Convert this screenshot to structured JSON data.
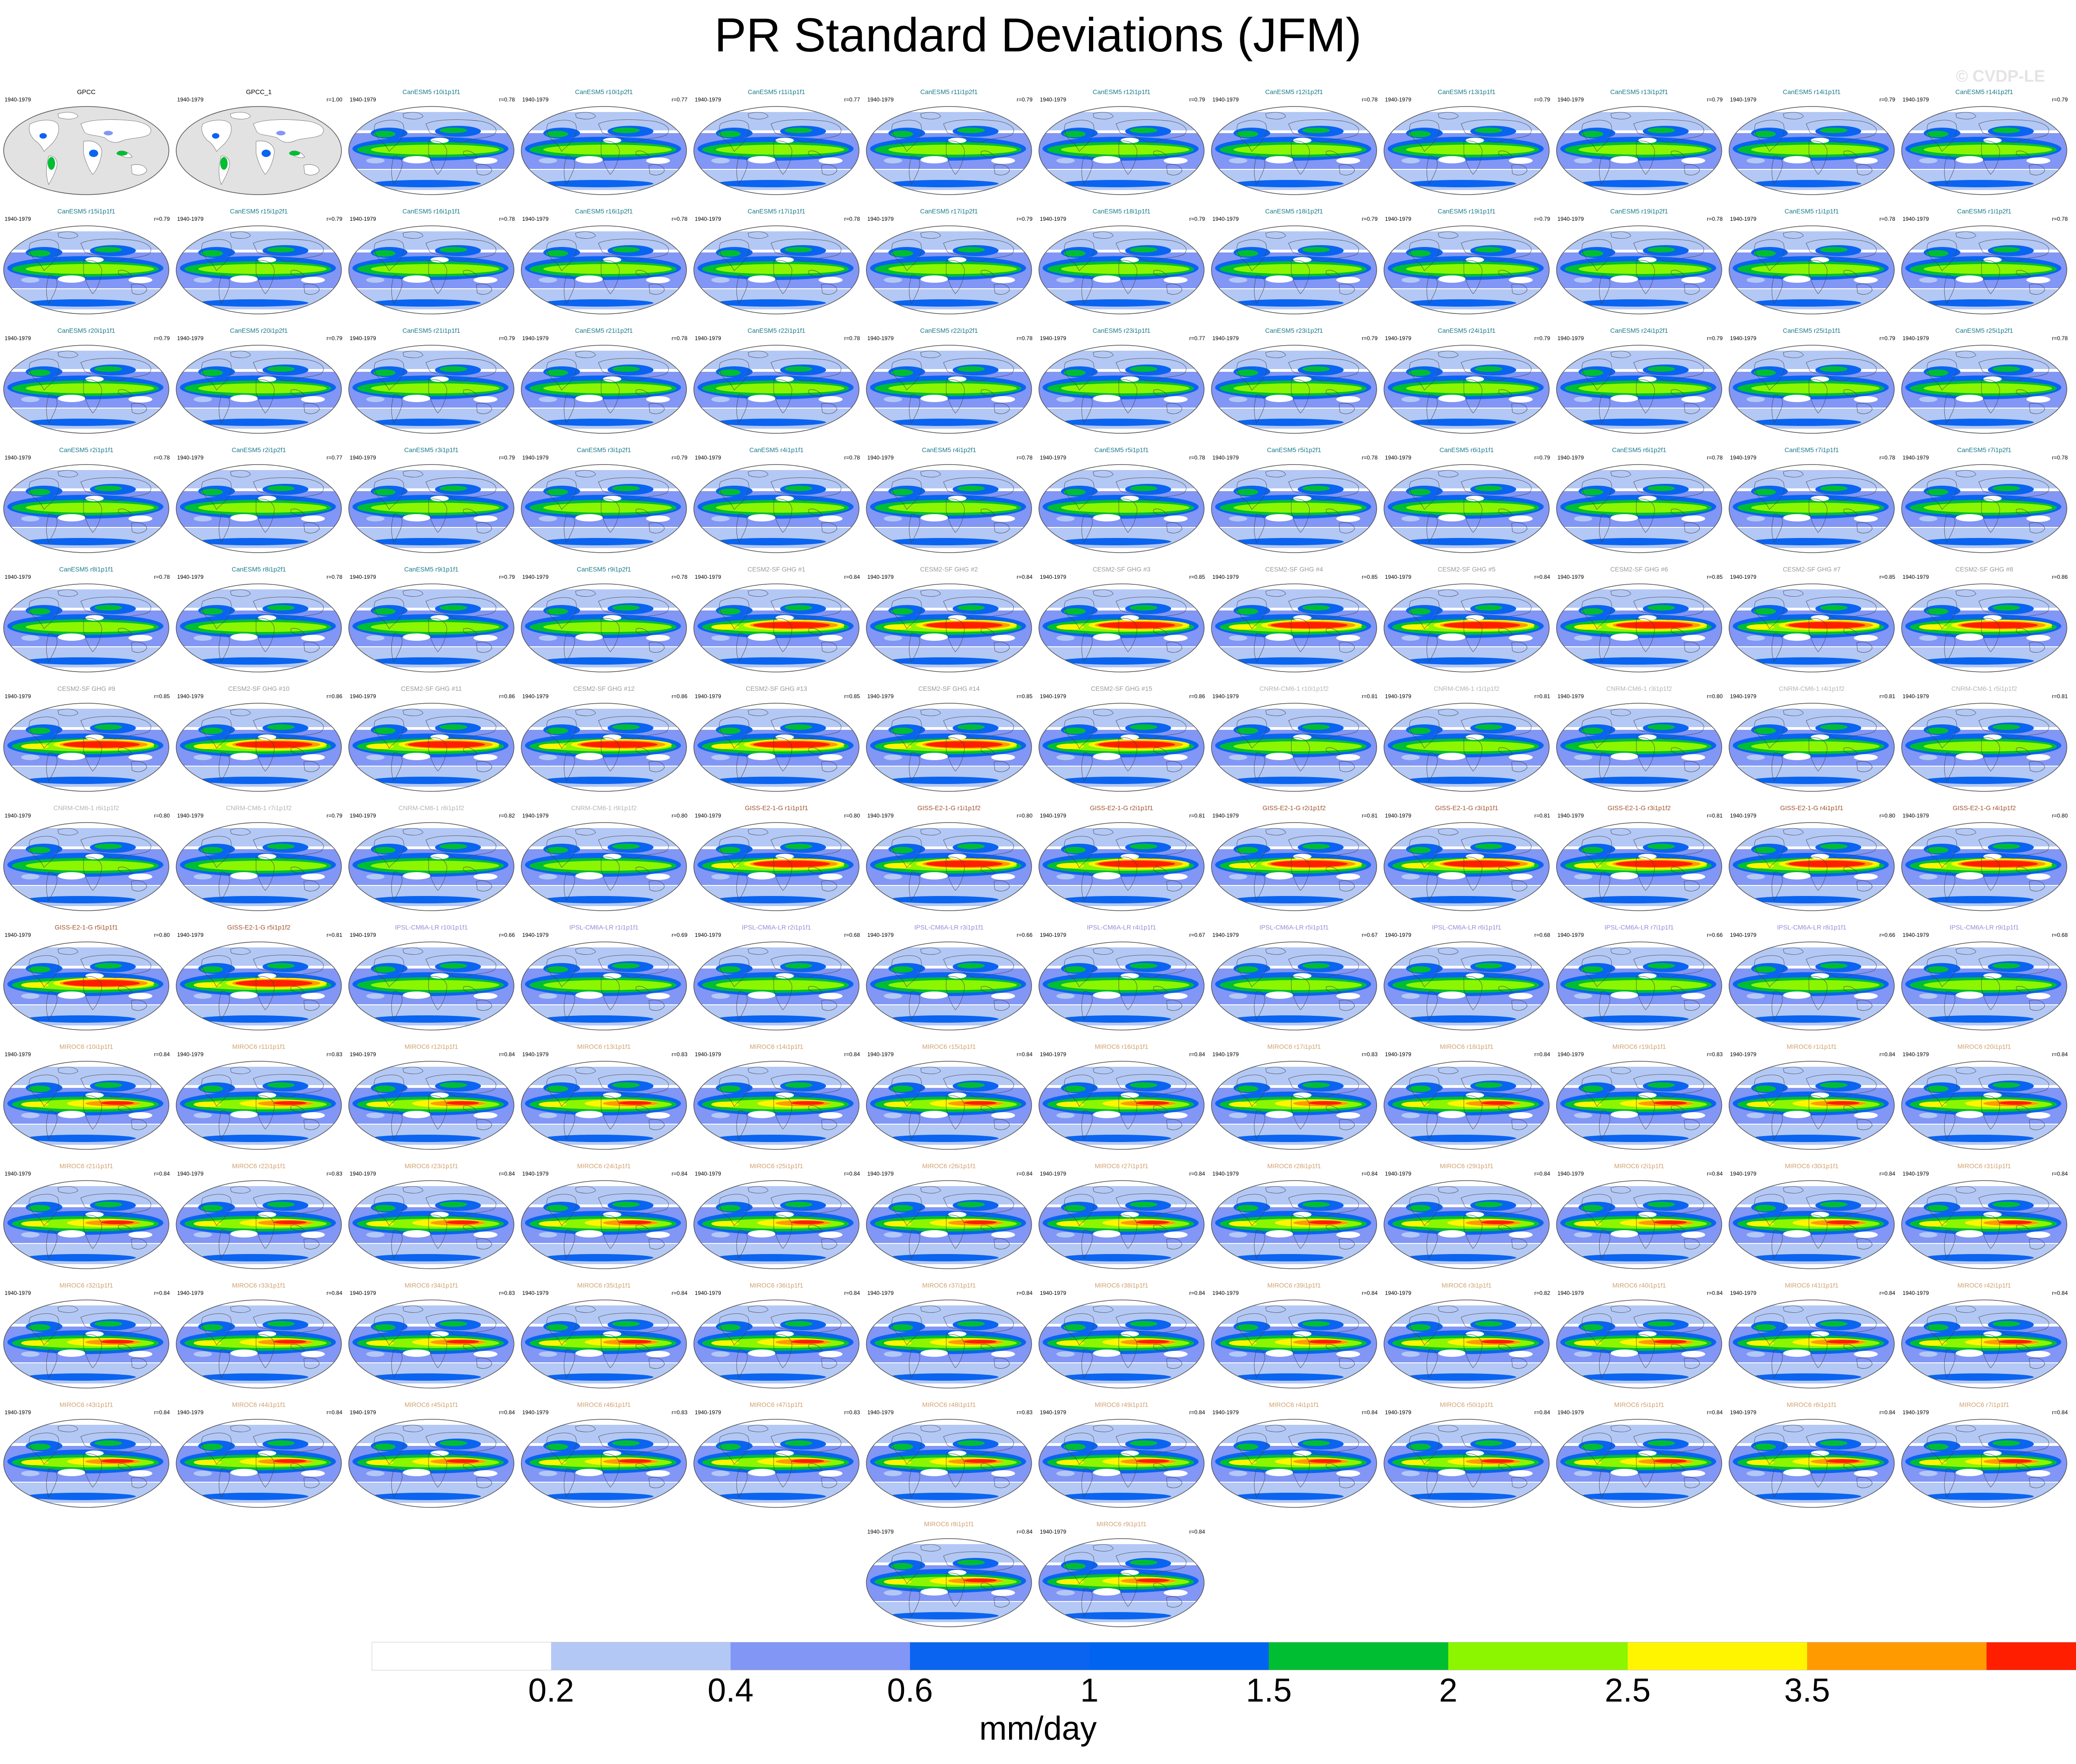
{
  "title": "PR Standard Deviations (JFM)",
  "watermark": "© CVDP-LE",
  "period": "1940-1979",
  "colorbar": {
    "units": "mm/day",
    "ticks": [
      "0.2",
      "0.4",
      "0.6",
      "1",
      "1.5",
      "2",
      "2.5",
      "3.5"
    ],
    "colors": [
      "#ffffff",
      "#b4c8f5",
      "#8296f5",
      "#0a64f0",
      "#0064f0",
      "#00be32",
      "#8cf500",
      "#fff500",
      "#ff9b00",
      "#ff1e00"
    ]
  },
  "group_colors": {
    "obs": "#000000",
    "CanESM5": "#1a7a8c",
    "CESM2-SF GHG": "#9a9a9a",
    "CNRM-CM6-1": "#b4b4b4",
    "GISS-E2-1-G": "#a0522d",
    "IPSL-CM6A-LR": "#9b8ad4",
    "MIROC6": "#d2a06e"
  },
  "panels": [
    {
      "name": "GPCC",
      "r": "",
      "group": "obs",
      "intensity": 0
    },
    {
      "name": "GPCC_1",
      "r": "r=1.00",
      "group": "obs",
      "intensity": 0
    },
    {
      "name": "CanESM5 r10i1p1f1",
      "r": "r=0.78",
      "group": "CanESM5",
      "intensity": 1
    },
    {
      "name": "CanESM5 r10i1p2f1",
      "r": "r=0.77",
      "group": "CanESM5",
      "intensity": 1
    },
    {
      "name": "CanESM5 r11i1p1f1",
      "r": "r=0.77",
      "group": "CanESM5",
      "intensity": 1
    },
    {
      "name": "CanESM5 r11i1p2f1",
      "r": "r=0.79",
      "group": "CanESM5",
      "intensity": 1
    },
    {
      "name": "CanESM5 r12i1p1f1",
      "r": "r=0.79",
      "group": "CanESM5",
      "intensity": 1
    },
    {
      "name": "CanESM5 r12i1p2f1",
      "r": "r=0.78",
      "group": "CanESM5",
      "intensity": 1
    },
    {
      "name": "CanESM5 r13i1p1f1",
      "r": "r=0.79",
      "group": "CanESM5",
      "intensity": 1
    },
    {
      "name": "CanESM5 r13i1p2f1",
      "r": "r=0.79",
      "group": "CanESM5",
      "intensity": 1
    },
    {
      "name": "CanESM5 r14i1p1f1",
      "r": "r=0.79",
      "group": "CanESM5",
      "intensity": 1
    },
    {
      "name": "CanESM5 r14i1p2f1",
      "r": "r=0.79",
      "group": "CanESM5",
      "intensity": 1
    },
    {
      "name": "CanESM5 r15i1p1f1",
      "r": "r=0.79",
      "group": "CanESM5",
      "intensity": 1
    },
    {
      "name": "CanESM5 r15i1p2f1",
      "r": "r=0.79",
      "group": "CanESM5",
      "intensity": 1
    },
    {
      "name": "CanESM5 r16i1p1f1",
      "r": "r=0.78",
      "group": "CanESM5",
      "intensity": 1
    },
    {
      "name": "CanESM5 r16i1p2f1",
      "r": "r=0.78",
      "group": "CanESM5",
      "intensity": 1
    },
    {
      "name": "CanESM5 r17i1p1f1",
      "r": "r=0.78",
      "group": "CanESM5",
      "intensity": 1
    },
    {
      "name": "CanESM5 r17i1p2f1",
      "r": "r=0.79",
      "group": "CanESM5",
      "intensity": 1
    },
    {
      "name": "CanESM5 r18i1p1f1",
      "r": "r=0.79",
      "group": "CanESM5",
      "intensity": 1
    },
    {
      "name": "CanESM5 r18i1p2f1",
      "r": "r=0.79",
      "group": "CanESM5",
      "intensity": 1
    },
    {
      "name": "CanESM5 r19i1p1f1",
      "r": "r=0.79",
      "group": "CanESM5",
      "intensity": 1
    },
    {
      "name": "CanESM5 r19i1p2f1",
      "r": "r=0.78",
      "group": "CanESM5",
      "intensity": 1
    },
    {
      "name": "CanESM5 r1i1p1f1",
      "r": "r=0.78",
      "group": "CanESM5",
      "intensity": 1
    },
    {
      "name": "CanESM5 r1i1p2f1",
      "r": "r=0.78",
      "group": "CanESM5",
      "intensity": 1
    },
    {
      "name": "CanESM5 r20i1p1f1",
      "r": "r=0.79",
      "group": "CanESM5",
      "intensity": 1
    },
    {
      "name": "CanESM5 r20i1p2f1",
      "r": "r=0.79",
      "group": "CanESM5",
      "intensity": 1
    },
    {
      "name": "CanESM5 r21i1p1f1",
      "r": "r=0.79",
      "group": "CanESM5",
      "intensity": 1
    },
    {
      "name": "CanESM5 r21i1p2f1",
      "r": "r=0.78",
      "group": "CanESM5",
      "intensity": 1
    },
    {
      "name": "CanESM5 r22i1p1f1",
      "r": "r=0.78",
      "group": "CanESM5",
      "intensity": 1
    },
    {
      "name": "CanESM5 r22i1p2f1",
      "r": "r=0.78",
      "group": "CanESM5",
      "intensity": 1
    },
    {
      "name": "CanESM5 r23i1p1f1",
      "r": "r=0.77",
      "group": "CanESM5",
      "intensity": 1
    },
    {
      "name": "CanESM5 r23i1p2f1",
      "r": "r=0.79",
      "group": "CanESM5",
      "intensity": 1
    },
    {
      "name": "CanESM5 r24i1p1f1",
      "r": "r=0.79",
      "group": "CanESM5",
      "intensity": 1
    },
    {
      "name": "CanESM5 r24i1p2f1",
      "r": "r=0.79",
      "group": "CanESM5",
      "intensity": 1
    },
    {
      "name": "CanESM5 r25i1p1f1",
      "r": "r=0.79",
      "group": "CanESM5",
      "intensity": 1
    },
    {
      "name": "CanESM5 r25i1p2f1",
      "r": "r=0.78",
      "group": "CanESM5",
      "intensity": 1
    },
    {
      "name": "CanESM5 r2i1p1f1",
      "r": "r=0.78",
      "group": "CanESM5",
      "intensity": 1
    },
    {
      "name": "CanESM5 r2i1p2f1",
      "r": "r=0.77",
      "group": "CanESM5",
      "intensity": 1
    },
    {
      "name": "CanESM5 r3i1p1f1",
      "r": "r=0.79",
      "group": "CanESM5",
      "intensity": 1
    },
    {
      "name": "CanESM5 r3i1p2f1",
      "r": "r=0.79",
      "group": "CanESM5",
      "intensity": 1
    },
    {
      "name": "CanESM5 r4i1p1f1",
      "r": "r=0.78",
      "group": "CanESM5",
      "intensity": 1
    },
    {
      "name": "CanESM5 r4i1p2f1",
      "r": "r=0.78",
      "group": "CanESM5",
      "intensity": 1
    },
    {
      "name": "CanESM5 r5i1p1f1",
      "r": "r=0.78",
      "group": "CanESM5",
      "intensity": 1
    },
    {
      "name": "CanESM5 r5i1p2f1",
      "r": "r=0.78",
      "group": "CanESM5",
      "intensity": 1
    },
    {
      "name": "CanESM5 r6i1p1f1",
      "r": "r=0.79",
      "group": "CanESM5",
      "intensity": 1
    },
    {
      "name": "CanESM5 r6i1p2f1",
      "r": "r=0.78",
      "group": "CanESM5",
      "intensity": 1
    },
    {
      "name": "CanESM5 r7i1p1f1",
      "r": "r=0.78",
      "group": "CanESM5",
      "intensity": 1
    },
    {
      "name": "CanESM5 r7i1p2f1",
      "r": "r=0.78",
      "group": "CanESM5",
      "intensity": 1
    },
    {
      "name": "CanESM5 r8i1p1f1",
      "r": "r=0.78",
      "group": "CanESM5",
      "intensity": 1
    },
    {
      "name": "CanESM5 r8i1p2f1",
      "r": "r=0.78",
      "group": "CanESM5",
      "intensity": 1
    },
    {
      "name": "CanESM5 r9i1p1f1",
      "r": "r=0.79",
      "group": "CanESM5",
      "intensity": 1
    },
    {
      "name": "CanESM5 r9i1p2f1",
      "r": "r=0.78",
      "group": "CanESM5",
      "intensity": 1
    },
    {
      "name": "CESM2-SF GHG #1",
      "r": "r=0.84",
      "group": "CESM2-SF GHG",
      "intensity": 3
    },
    {
      "name": "CESM2-SF GHG #2",
      "r": "r=0.84",
      "group": "CESM2-SF GHG",
      "intensity": 3
    },
    {
      "name": "CESM2-SF GHG #3",
      "r": "r=0.85",
      "group": "CESM2-SF GHG",
      "intensity": 3
    },
    {
      "name": "CESM2-SF GHG #4",
      "r": "r=0.85",
      "group": "CESM2-SF GHG",
      "intensity": 3
    },
    {
      "name": "CESM2-SF GHG #5",
      "r": "r=0.84",
      "group": "CESM2-SF GHG",
      "intensity": 3
    },
    {
      "name": "CESM2-SF GHG #6",
      "r": "r=0.85",
      "group": "CESM2-SF GHG",
      "intensity": 3
    },
    {
      "name": "CESM2-SF GHG #7",
      "r": "r=0.85",
      "group": "CESM2-SF GHG",
      "intensity": 3
    },
    {
      "name": "CESM2-SF GHG #8",
      "r": "r=0.86",
      "group": "CESM2-SF GHG",
      "intensity": 3
    },
    {
      "name": "CESM2-SF GHG #9",
      "r": "r=0.85",
      "group": "CESM2-SF GHG",
      "intensity": 3
    },
    {
      "name": "CESM2-SF GHG #10",
      "r": "r=0.86",
      "group": "CESM2-SF GHG",
      "intensity": 3
    },
    {
      "name": "CESM2-SF GHG #11",
      "r": "r=0.86",
      "group": "CESM2-SF GHG",
      "intensity": 3
    },
    {
      "name": "CESM2-SF GHG #12",
      "r": "r=0.86",
      "group": "CESM2-SF GHG",
      "intensity": 3
    },
    {
      "name": "CESM2-SF GHG #13",
      "r": "r=0.85",
      "group": "CESM2-SF GHG",
      "intensity": 3
    },
    {
      "name": "CESM2-SF GHG #14",
      "r": "r=0.85",
      "group": "CESM2-SF GHG",
      "intensity": 3
    },
    {
      "name": "CESM2-SF GHG #15",
      "r": "r=0.86",
      "group": "CESM2-SF GHG",
      "intensity": 3
    },
    {
      "name": "CNRM-CM6-1 r10i1p1f2",
      "r": "r=0.81",
      "group": "CNRM-CM6-1",
      "intensity": 1
    },
    {
      "name": "CNRM-CM6-1 r1i1p1f2",
      "r": "r=0.81",
      "group": "CNRM-CM6-1",
      "intensity": 1
    },
    {
      "name": "CNRM-CM6-1 r3i1p1f2",
      "r": "r=0.80",
      "group": "CNRM-CM6-1",
      "intensity": 1
    },
    {
      "name": "CNRM-CM6-1 r4i1p1f2",
      "r": "r=0.81",
      "group": "CNRM-CM6-1",
      "intensity": 1
    },
    {
      "name": "CNRM-CM6-1 r5i1p1f2",
      "r": "r=0.81",
      "group": "CNRM-CM6-1",
      "intensity": 1
    },
    {
      "name": "CNRM-CM6-1 r6i1p1f2",
      "r": "r=0.80",
      "group": "CNRM-CM6-1",
      "intensity": 1
    },
    {
      "name": "CNRM-CM6-1 r7i1p1f2",
      "r": "r=0.79",
      "group": "CNRM-CM6-1",
      "intensity": 1
    },
    {
      "name": "CNRM-CM6-1 r8i1p1f2",
      "r": "r=0.82",
      "group": "CNRM-CM6-1",
      "intensity": 1
    },
    {
      "name": "CNRM-CM6-1 r9i1p1f2",
      "r": "r=0.80",
      "group": "CNRM-CM6-1",
      "intensity": 1
    },
    {
      "name": "GISS-E2-1-G r1i1p1f1",
      "r": "r=0.80",
      "group": "GISS-E2-1-G",
      "intensity": 3
    },
    {
      "name": "GISS-E2-1-G r1i1p1f2",
      "r": "r=0.80",
      "group": "GISS-E2-1-G",
      "intensity": 3
    },
    {
      "name": "GISS-E2-1-G r2i1p1f1",
      "r": "r=0.81",
      "group": "GISS-E2-1-G",
      "intensity": 3
    },
    {
      "name": "GISS-E2-1-G r2i1p1f2",
      "r": "r=0.81",
      "group": "GISS-E2-1-G",
      "intensity": 3
    },
    {
      "name": "GISS-E2-1-G r3i1p1f1",
      "r": "r=0.81",
      "group": "GISS-E2-1-G",
      "intensity": 3
    },
    {
      "name": "GISS-E2-1-G r3i1p1f2",
      "r": "r=0.81",
      "group": "GISS-E2-1-G",
      "intensity": 3
    },
    {
      "name": "GISS-E2-1-G r4i1p1f1",
      "r": "r=0.80",
      "group": "GISS-E2-1-G",
      "intensity": 3
    },
    {
      "name": "GISS-E2-1-G r4i1p1f2",
      "r": "r=0.80",
      "group": "GISS-E2-1-G",
      "intensity": 3
    },
    {
      "name": "GISS-E2-1-G r5i1p1f1",
      "r": "r=0.80",
      "group": "GISS-E2-1-G",
      "intensity": 3
    },
    {
      "name": "GISS-E2-1-G r5i1p1f2",
      "r": "r=0.81",
      "group": "GISS-E2-1-G",
      "intensity": 3
    },
    {
      "name": "IPSL-CM6A-LR r10i1p1f1",
      "r": "r=0.66",
      "group": "IPSL-CM6A-LR",
      "intensity": 1
    },
    {
      "name": "IPSL-CM6A-LR r1i1p1f1",
      "r": "r=0.69",
      "group": "IPSL-CM6A-LR",
      "intensity": 1
    },
    {
      "name": "IPSL-CM6A-LR r2i1p1f1",
      "r": "r=0.68",
      "group": "IPSL-CM6A-LR",
      "intensity": 1
    },
    {
      "name": "IPSL-CM6A-LR r3i1p1f1",
      "r": "r=0.66",
      "group": "IPSL-CM6A-LR",
      "intensity": 1
    },
    {
      "name": "IPSL-CM6A-LR r4i1p1f1",
      "r": "r=0.67",
      "group": "IPSL-CM6A-LR",
      "intensity": 1
    },
    {
      "name": "IPSL-CM6A-LR r5i1p1f1",
      "r": "r=0.67",
      "group": "IPSL-CM6A-LR",
      "intensity": 1
    },
    {
      "name": "IPSL-CM6A-LR r6i1p1f1",
      "r": "r=0.68",
      "group": "IPSL-CM6A-LR",
      "intensity": 1
    },
    {
      "name": "IPSL-CM6A-LR r7i1p1f1",
      "r": "r=0.66",
      "group": "IPSL-CM6A-LR",
      "intensity": 1
    },
    {
      "name": "IPSL-CM6A-LR r8i1p1f1",
      "r": "r=0.66",
      "group": "IPSL-CM6A-LR",
      "intensity": 1
    },
    {
      "name": "IPSL-CM6A-LR r9i1p1f1",
      "r": "r=0.68",
      "group": "IPSL-CM6A-LR",
      "intensity": 1
    },
    {
      "name": "MIROC6 r10i1p1f1",
      "r": "r=0.84",
      "group": "MIROC6",
      "intensity": 2
    },
    {
      "name": "MIROC6 r11i1p1f1",
      "r": "r=0.83",
      "group": "MIROC6",
      "intensity": 2
    },
    {
      "name": "MIROC6 r12i1p1f1",
      "r": "r=0.84",
      "group": "MIROC6",
      "intensity": 2
    },
    {
      "name": "MIROC6 r13i1p1f1",
      "r": "r=0.83",
      "group": "MIROC6",
      "intensity": 2
    },
    {
      "name": "MIROC6 r14i1p1f1",
      "r": "r=0.84",
      "group": "MIROC6",
      "intensity": 2
    },
    {
      "name": "MIROC6 r15i1p1f1",
      "r": "r=0.84",
      "group": "MIROC6",
      "intensity": 2
    },
    {
      "name": "MIROC6 r16i1p1f1",
      "r": "r=0.84",
      "group": "MIROC6",
      "intensity": 2
    },
    {
      "name": "MIROC6 r17i1p1f1",
      "r": "r=0.83",
      "group": "MIROC6",
      "intensity": 2
    },
    {
      "name": "MIROC6 r18i1p1f1",
      "r": "r=0.84",
      "group": "MIROC6",
      "intensity": 2
    },
    {
      "name": "MIROC6 r19i1p1f1",
      "r": "r=0.83",
      "group": "MIROC6",
      "intensity": 2
    },
    {
      "name": "MIROC6 r1i1p1f1",
      "r": "r=0.84",
      "group": "MIROC6",
      "intensity": 2
    },
    {
      "name": "MIROC6 r20i1p1f1",
      "r": "r=0.84",
      "group": "MIROC6",
      "intensity": 2
    },
    {
      "name": "MIROC6 r21i1p1f1",
      "r": "r=0.84",
      "group": "MIROC6",
      "intensity": 2
    },
    {
      "name": "MIROC6 r22i1p1f1",
      "r": "r=0.83",
      "group": "MIROC6",
      "intensity": 2
    },
    {
      "name": "MIROC6 r23i1p1f1",
      "r": "r=0.84",
      "group": "MIROC6",
      "intensity": 2
    },
    {
      "name": "MIROC6 r24i1p1f1",
      "r": "r=0.84",
      "group": "MIROC6",
      "intensity": 2
    },
    {
      "name": "MIROC6 r25i1p1f1",
      "r": "r=0.84",
      "group": "MIROC6",
      "intensity": 2
    },
    {
      "name": "MIROC6 r26i1p1f1",
      "r": "r=0.84",
      "group": "MIROC6",
      "intensity": 2
    },
    {
      "name": "MIROC6 r27i1p1f1",
      "r": "r=0.84",
      "group": "MIROC6",
      "intensity": 2
    },
    {
      "name": "MIROC6 r28i1p1f1",
      "r": "r=0.84",
      "group": "MIROC6",
      "intensity": 2
    },
    {
      "name": "MIROC6 r29i1p1f1",
      "r": "r=0.84",
      "group": "MIROC6",
      "intensity": 2
    },
    {
      "name": "MIROC6 r2i1p1f1",
      "r": "r=0.84",
      "group": "MIROC6",
      "intensity": 2
    },
    {
      "name": "MIROC6 r30i1p1f1",
      "r": "r=0.84",
      "group": "MIROC6",
      "intensity": 2
    },
    {
      "name": "MIROC6 r31i1p1f1",
      "r": "r=0.84",
      "group": "MIROC6",
      "intensity": 2
    },
    {
      "name": "MIROC6 r32i1p1f1",
      "r": "r=0.84",
      "group": "MIROC6",
      "intensity": 2
    },
    {
      "name": "MIROC6 r33i1p1f1",
      "r": "r=0.84",
      "group": "MIROC6",
      "intensity": 2
    },
    {
      "name": "MIROC6 r34i1p1f1",
      "r": "r=0.83",
      "group": "MIROC6",
      "intensity": 2
    },
    {
      "name": "MIROC6 r35i1p1f1",
      "r": "r=0.84",
      "group": "MIROC6",
      "intensity": 2
    },
    {
      "name": "MIROC6 r36i1p1f1",
      "r": "r=0.84",
      "group": "MIROC6",
      "intensity": 2
    },
    {
      "name": "MIROC6 r37i1p1f1",
      "r": "r=0.84",
      "group": "MIROC6",
      "intensity": 2
    },
    {
      "name": "MIROC6 r38i1p1f1",
      "r": "r=0.84",
      "group": "MIROC6",
      "intensity": 2
    },
    {
      "name": "MIROC6 r39i1p1f1",
      "r": "r=0.84",
      "group": "MIROC6",
      "intensity": 2
    },
    {
      "name": "MIROC6 r3i1p1f1",
      "r": "r=0.82",
      "group": "MIROC6",
      "intensity": 2
    },
    {
      "name": "MIROC6 r40i1p1f1",
      "r": "r=0.84",
      "group": "MIROC6",
      "intensity": 2
    },
    {
      "name": "MIROC6 r41i1p1f1",
      "r": "r=0.84",
      "group": "MIROC6",
      "intensity": 2
    },
    {
      "name": "MIROC6 r42i1p1f1",
      "r": "r=0.84",
      "group": "MIROC6",
      "intensity": 2
    },
    {
      "name": "MIROC6 r43i1p1f1",
      "r": "r=0.84",
      "group": "MIROC6",
      "intensity": 2
    },
    {
      "name": "MIROC6 r44i1p1f1",
      "r": "r=0.84",
      "group": "MIROC6",
      "intensity": 2
    },
    {
      "name": "MIROC6 r45i1p1f1",
      "r": "r=0.84",
      "group": "MIROC6",
      "intensity": 2
    },
    {
      "name": "MIROC6 r46i1p1f1",
      "r": "r=0.83",
      "group": "MIROC6",
      "intensity": 2
    },
    {
      "name": "MIROC6 r47i1p1f1",
      "r": "r=0.83",
      "group": "MIROC6",
      "intensity": 2
    },
    {
      "name": "MIROC6 r48i1p1f1",
      "r": "r=0.83",
      "group": "MIROC6",
      "intensity": 2
    },
    {
      "name": "MIROC6 r49i1p1f1",
      "r": "r=0.84",
      "group": "MIROC6",
      "intensity": 2
    },
    {
      "name": "MIROC6 r4i1p1f1",
      "r": "r=0.84",
      "group": "MIROC6",
      "intensity": 2
    },
    {
      "name": "MIROC6 r50i1p1f1",
      "r": "r=0.84",
      "group": "MIROC6",
      "intensity": 2
    },
    {
      "name": "MIROC6 r5i1p1f1",
      "r": "r=0.84",
      "group": "MIROC6",
      "intensity": 2
    },
    {
      "name": "MIROC6 r6i1p1f1",
      "r": "r=0.84",
      "group": "MIROC6",
      "intensity": 2
    },
    {
      "name": "MIROC6 r7i1p1f1",
      "r": "r=0.84",
      "group": "MIROC6",
      "intensity": 2
    },
    {
      "name": "MIROC6 r8i1p1f1",
      "r": "r=0.84",
      "group": "MIROC6",
      "intensity": 2
    },
    {
      "name": "MIROC6 r9i1p1f1",
      "r": "r=0.84",
      "group": "MIROC6",
      "intensity": 2
    }
  ]
}
